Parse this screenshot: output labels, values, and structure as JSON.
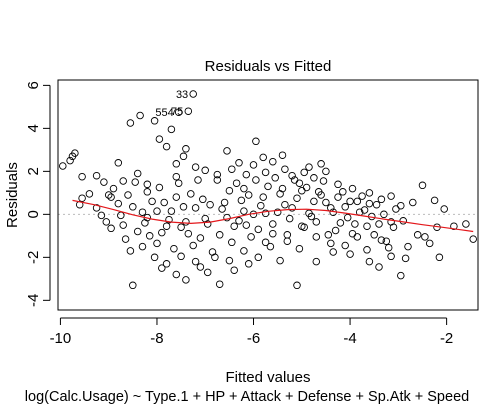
{
  "chart_data": {
    "type": "scatter",
    "title": "Residuals vs Fitted",
    "xlabel": "Fitted values",
    "sublabel": "log(Calc.Usage) ~ Type.1 + HP + Attack + Defense + Sp.Atk + Speed",
    "ylabel": "Residuals",
    "xlim": [
      -10.05,
      -1.35
    ],
    "ylim": [
      -4.45,
      6.25
    ],
    "x_ticks": [
      -10,
      -8,
      -6,
      -4,
      -2
    ],
    "x_tick_labels": [
      "-10",
      "-8",
      "-6",
      "-4",
      "-2"
    ],
    "y_ticks": [
      -4,
      -2,
      0,
      2,
      4,
      6
    ],
    "y_tick_labels": [
      "-4",
      "-2",
      "0",
      "2",
      "4",
      "6"
    ],
    "grid": false,
    "reference_line": {
      "y": 0,
      "style": "dotted",
      "color": "#bbbbbb"
    },
    "point_style": "open-circle",
    "point_color": "#000000",
    "smoother_color": "#e3171b",
    "series": [
      {
        "values": [
          [
            -7.25,
            5.6
          ],
          [
            -7.35,
            4.8
          ],
          [
            -7.55,
            4.75
          ],
          [
            -9.75,
            2.7
          ],
          [
            -9.7,
            2.85
          ],
          [
            -9.8,
            2.5
          ],
          [
            -9.95,
            2.25
          ],
          [
            -9.55,
            1.75
          ],
          [
            -9.25,
            1.8
          ],
          [
            -9.1,
            1.5
          ],
          [
            -9.4,
            0.95
          ],
          [
            -8.9,
            1.2
          ],
          [
            -8.8,
            2.4
          ],
          [
            -8.55,
            4.25
          ],
          [
            -8.35,
            4.6
          ],
          [
            -8.05,
            4.35
          ],
          [
            -7.7,
            3.95
          ],
          [
            -7.95,
            3.5
          ],
          [
            -7.8,
            3.15
          ],
          [
            -7.45,
            2.7
          ],
          [
            -7.2,
            2.2
          ],
          [
            -6.55,
            2.95
          ],
          [
            -6.3,
            2.4
          ],
          [
            -5.95,
            3.4
          ],
          [
            -5.6,
            2.45
          ],
          [
            -5.4,
            2.75
          ],
          [
            -4.85,
            2.2
          ],
          [
            -4.5,
            2.0
          ],
          [
            -8.4,
            1.9
          ],
          [
            -8.2,
            1.4
          ],
          [
            -7.6,
            1.75
          ],
          [
            -7.0,
            2.05
          ],
          [
            -6.75,
            1.6
          ],
          [
            -6.15,
            1.85
          ],
          [
            -5.75,
            1.95
          ],
          [
            -5.2,
            1.8
          ],
          [
            -4.75,
            1.7
          ],
          [
            -4.25,
            1.4
          ],
          [
            -3.95,
            1.2
          ],
          [
            -3.6,
            1.0
          ],
          [
            -3.15,
            0.85
          ],
          [
            -2.7,
            0.55
          ],
          [
            -2.5,
            1.35
          ],
          [
            -2.25,
            0.65
          ],
          [
            -2.05,
            0.25
          ],
          [
            -1.85,
            -0.55
          ],
          [
            -1.6,
            -0.45
          ],
          [
            -1.45,
            -1.15
          ],
          [
            -2.2,
            -0.6
          ],
          [
            -2.35,
            -1.35
          ],
          [
            -2.45,
            -1.05
          ],
          [
            -2.15,
            -2.0
          ],
          [
            -2.8,
            -1.5
          ],
          [
            -2.95,
            -2.85
          ],
          [
            -2.85,
            -2.05
          ],
          [
            -3.15,
            -1.95
          ],
          [
            -3.4,
            -2.45
          ],
          [
            -3.35,
            -1.2
          ],
          [
            -3.65,
            -1.65
          ],
          [
            -3.85,
            -1.05
          ],
          [
            -4.1,
            -1.45
          ],
          [
            -4.35,
            -1.75
          ],
          [
            -4.7,
            -2.2
          ],
          [
            -5.05,
            -1.6
          ],
          [
            -5.1,
            -3.3
          ],
          [
            -5.45,
            -2.15
          ],
          [
            -5.75,
            -1.3
          ],
          [
            -6.1,
            -2.3
          ],
          [
            -6.4,
            -2.6
          ],
          [
            -6.7,
            -3.25
          ],
          [
            -6.95,
            -2.7
          ],
          [
            -7.2,
            -2.2
          ],
          [
            -7.4,
            -3.05
          ],
          [
            -7.6,
            -2.8
          ],
          [
            -7.8,
            -2.3
          ],
          [
            -8.05,
            -2.0
          ],
          [
            -8.3,
            -1.5
          ],
          [
            -8.5,
            -3.3
          ],
          [
            -8.65,
            -1.15
          ],
          [
            -8.95,
            -0.65
          ],
          [
            -9.25,
            0.3
          ],
          [
            -9.05,
            -0.35
          ],
          [
            -9.55,
            0.75
          ],
          [
            -9.6,
            0.45
          ],
          [
            -8.75,
            -0.05
          ],
          [
            -8.5,
            0.35
          ],
          [
            -8.25,
            -0.4
          ],
          [
            -8.1,
            0.6
          ],
          [
            -7.9,
            -0.85
          ],
          [
            -7.7,
            0.15
          ],
          [
            -7.5,
            -0.6
          ],
          [
            -7.3,
            0.95
          ],
          [
            -7.1,
            -1.1
          ],
          [
            -6.9,
            0.45
          ],
          [
            -6.7,
            -0.95
          ],
          [
            -6.5,
            1.1
          ],
          [
            -6.3,
            -0.3
          ],
          [
            -6.1,
            0.9
          ],
          [
            -5.9,
            -0.7
          ],
          [
            -5.7,
            1.3
          ],
          [
            -5.5,
            0.1
          ],
          [
            -5.3,
            -0.95
          ],
          [
            -5.1,
            0.75
          ],
          [
            -4.9,
            1.25
          ],
          [
            -4.7,
            -0.35
          ],
          [
            -4.5,
            0.55
          ],
          [
            -4.3,
            -0.75
          ],
          [
            -4.1,
            0.35
          ],
          [
            -3.9,
            -0.45
          ],
          [
            -3.7,
            0.2
          ],
          [
            -3.5,
            -0.95
          ],
          [
            -3.3,
            0.0
          ],
          [
            -3.1,
            -0.6
          ],
          [
            -2.9,
            -0.3
          ],
          [
            -8.6,
            0.9
          ],
          [
            -8.4,
            -0.8
          ],
          [
            -8.2,
            1.05
          ],
          [
            -8.0,
            -1.35
          ],
          [
            -7.85,
            0.55
          ],
          [
            -7.65,
            -1.6
          ],
          [
            -7.45,
            0.35
          ],
          [
            -7.25,
            -1.45
          ],
          [
            -7.05,
            0.7
          ],
          [
            -6.85,
            -1.75
          ],
          [
            -6.65,
            0.25
          ],
          [
            -6.45,
            -1.3
          ],
          [
            -6.25,
            0.65
          ],
          [
            -6.05,
            -1.05
          ],
          [
            -5.85,
            0.4
          ],
          [
            -5.65,
            -1.5
          ],
          [
            -5.45,
            0.95
          ],
          [
            -5.25,
            -0.2
          ],
          [
            -5.05,
            1.45
          ],
          [
            -4.85,
            0.05
          ],
          [
            -4.65,
            1.05
          ],
          [
            -4.45,
            -0.95
          ],
          [
            -4.25,
            0.8
          ],
          [
            -4.05,
            -0.15
          ],
          [
            -3.85,
            0.6
          ],
          [
            -3.65,
            -0.55
          ],
          [
            -3.45,
            0.45
          ],
          [
            -3.25,
            -1.25
          ],
          [
            -3.05,
            0.25
          ],
          [
            -8.8,
            0.5
          ],
          [
            -8.7,
            -0.5
          ],
          [
            -8.45,
            1.5
          ],
          [
            -8.15,
            -1.0
          ],
          [
            -7.95,
            1.25
          ],
          [
            -7.75,
            -0.25
          ],
          [
            -7.55,
            1.45
          ],
          [
            -7.35,
            -0.9
          ],
          [
            -7.15,
            1.6
          ],
          [
            -6.95,
            -0.45
          ],
          [
            -6.75,
            1.85
          ],
          [
            -6.55,
            -0.15
          ],
          [
            -6.35,
            1.45
          ],
          [
            -6.15,
            -0.5
          ],
          [
            -5.95,
            1.6
          ],
          [
            -5.75,
            0.05
          ],
          [
            -5.55,
            1.7
          ],
          [
            -5.35,
            0.45
          ],
          [
            -5.15,
            1.6
          ],
          [
            -4.95,
            -0.6
          ],
          [
            -4.75,
            0.6
          ],
          [
            -4.55,
            1.55
          ],
          [
            -4.35,
            0.1
          ],
          [
            -4.15,
            1.05
          ],
          [
            -3.95,
            -0.9
          ],
          [
            -3.75,
            0.85
          ],
          [
            -3.55,
            -0.1
          ],
          [
            -3.35,
            0.7
          ],
          [
            -3.15,
            -0.35
          ],
          [
            -2.95,
            0.4
          ],
          [
            -9.15,
            -0.05
          ],
          [
            -8.95,
            0.8
          ],
          [
            -8.55,
            -1.7
          ],
          [
            -8.3,
            0.1
          ],
          [
            -7.9,
            -2.5
          ],
          [
            -7.5,
            -1.95
          ],
          [
            -7.1,
            -2.45
          ],
          [
            -6.8,
            -2.0
          ],
          [
            -6.5,
            -2.15
          ],
          [
            -6.2,
            -1.7
          ],
          [
            -5.9,
            -2.0
          ],
          [
            -5.6,
            -0.45
          ],
          [
            -5.3,
            -1.25
          ],
          [
            -5.0,
            -0.55
          ],
          [
            -4.7,
            -1.05
          ],
          [
            -4.4,
            -1.35
          ],
          [
            -4.0,
            -1.85
          ],
          [
            -3.6,
            -2.2
          ],
          [
            -3.2,
            -1.55
          ],
          [
            -2.6,
            -0.95
          ],
          [
            -6.0,
            2.3
          ],
          [
            -5.35,
            2.1
          ],
          [
            -4.95,
            1.95
          ],
          [
            -4.6,
            2.35
          ],
          [
            -5.8,
            2.65
          ],
          [
            -6.45,
            2.1
          ],
          [
            -7.4,
            3.05
          ],
          [
            -7.6,
            2.35
          ],
          [
            -8.7,
            1.55
          ],
          [
            -9.0,
            0.9
          ],
          [
            -6.2,
            1.2
          ],
          [
            -6.0,
            0.0
          ],
          [
            -5.8,
            0.8
          ],
          [
            -5.6,
            -0.9
          ],
          [
            -5.4,
            1.2
          ],
          [
            -5.2,
            0.3
          ],
          [
            -5.0,
            1.1
          ],
          [
            -4.8,
            -0.1
          ],
          [
            -4.6,
            0.9
          ],
          [
            -4.4,
            0.3
          ],
          [
            -4.2,
            -0.4
          ],
          [
            -4.0,
            0.6
          ],
          [
            -3.8,
            0.1
          ],
          [
            -3.6,
            0.5
          ],
          [
            -3.4,
            -0.45
          ],
          [
            -6.6,
            0.55
          ],
          [
            -6.4,
            -0.55
          ],
          [
            -6.2,
            0.15
          ],
          [
            -7.0,
            -0.2
          ],
          [
            -7.2,
            0.3
          ],
          [
            -7.4,
            -0.35
          ],
          [
            -7.6,
            0.8
          ],
          [
            -7.8,
            -0.55
          ],
          [
            -8.0,
            0.15
          ],
          [
            -8.2,
            -0.15
          ]
        ],
        "labeled_points": [
          {
            "label": "33",
            "x": -7.25,
            "y": 5.6
          },
          {
            "label": "554",
            "x": -7.55,
            "y": 4.75
          },
          {
            "label": "75",
            "x": -7.35,
            "y": 4.8
          }
        ]
      }
    ],
    "smoother": [
      [
        -9.75,
        0.65
      ],
      [
        -9.3,
        0.45
      ],
      [
        -8.9,
        0.22
      ],
      [
        -8.5,
        -0.02
      ],
      [
        -8.1,
        -0.22
      ],
      [
        -7.7,
        -0.36
      ],
      [
        -7.3,
        -0.42
      ],
      [
        -6.9,
        -0.36
      ],
      [
        -6.5,
        -0.2
      ],
      [
        -6.1,
        0.0
      ],
      [
        -5.7,
        0.14
      ],
      [
        -5.3,
        0.22
      ],
      [
        -4.9,
        0.24
      ],
      [
        -4.5,
        0.18
      ],
      [
        -4.1,
        0.06
      ],
      [
        -3.7,
        -0.08
      ],
      [
        -3.3,
        -0.22
      ],
      [
        -2.9,
        -0.35
      ],
      [
        -2.5,
        -0.48
      ],
      [
        -2.1,
        -0.6
      ],
      [
        -1.7,
        -0.72
      ],
      [
        -1.45,
        -0.8
      ]
    ]
  }
}
